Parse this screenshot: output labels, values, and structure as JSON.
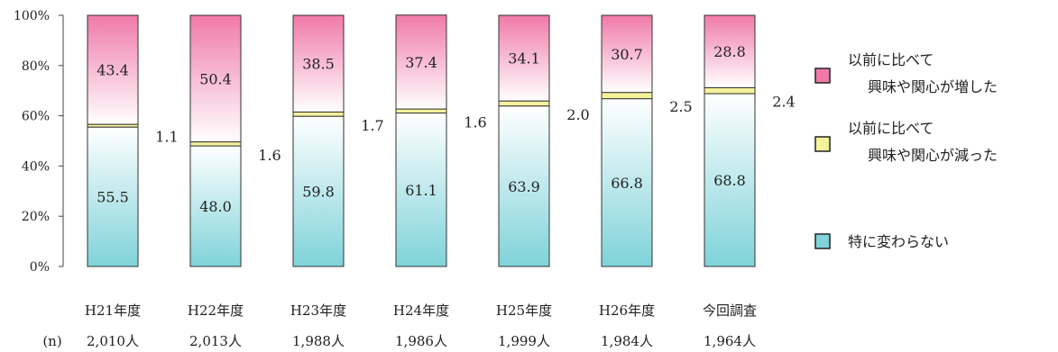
{
  "chart_data": {
    "type": "bar",
    "stacked": true,
    "percent": true,
    "categories": [
      "H21年度",
      "H22年度",
      "H23年度",
      "H24年度",
      "H25年度",
      "H26年度",
      "今回調査"
    ],
    "n_label": "(n)",
    "n_values": [
      "2,010人",
      "2,013人",
      "1,988人",
      "1,986人",
      "1,999人",
      "1,984人",
      "1,964人"
    ],
    "series": [
      {
        "name": "特に変わらない",
        "values": [
          55.5,
          48.0,
          59.8,
          61.1,
          63.9,
          66.8,
          68.8
        ],
        "labels": [
          "55.5",
          "48.0",
          "59.8",
          "61.1",
          "63.9",
          "66.8",
          "68.8"
        ],
        "color": "#7fd3d9",
        "color_light": "#ffffff"
      },
      {
        "name": [
          "以前に比べて",
          "興味や関心が減った"
        ],
        "values": [
          1.1,
          1.6,
          1.7,
          1.6,
          2.0,
          2.5,
          2.4
        ],
        "labels": [
          "1.1",
          "1.6",
          "1.7",
          "1.6",
          "2.0",
          "2.5",
          "2.4"
        ],
        "color": "#f4f29a",
        "color_light": "#f4f29a"
      },
      {
        "name": [
          "以前に比べて",
          "興味や関心が増した"
        ],
        "values": [
          43.4,
          50.4,
          38.5,
          37.4,
          34.1,
          30.7,
          28.8
        ],
        "labels": [
          "43.4",
          "50.4",
          "38.5",
          "37.4",
          "34.1",
          "30.7",
          "28.8"
        ],
        "color": "#f07aa8",
        "color_light": "#ffffff"
      }
    ],
    "yticks": [
      "0%",
      "20%",
      "40%",
      "60%",
      "80%",
      "100%"
    ],
    "ylim": [
      0,
      100
    ],
    "legend_position": "right"
  }
}
